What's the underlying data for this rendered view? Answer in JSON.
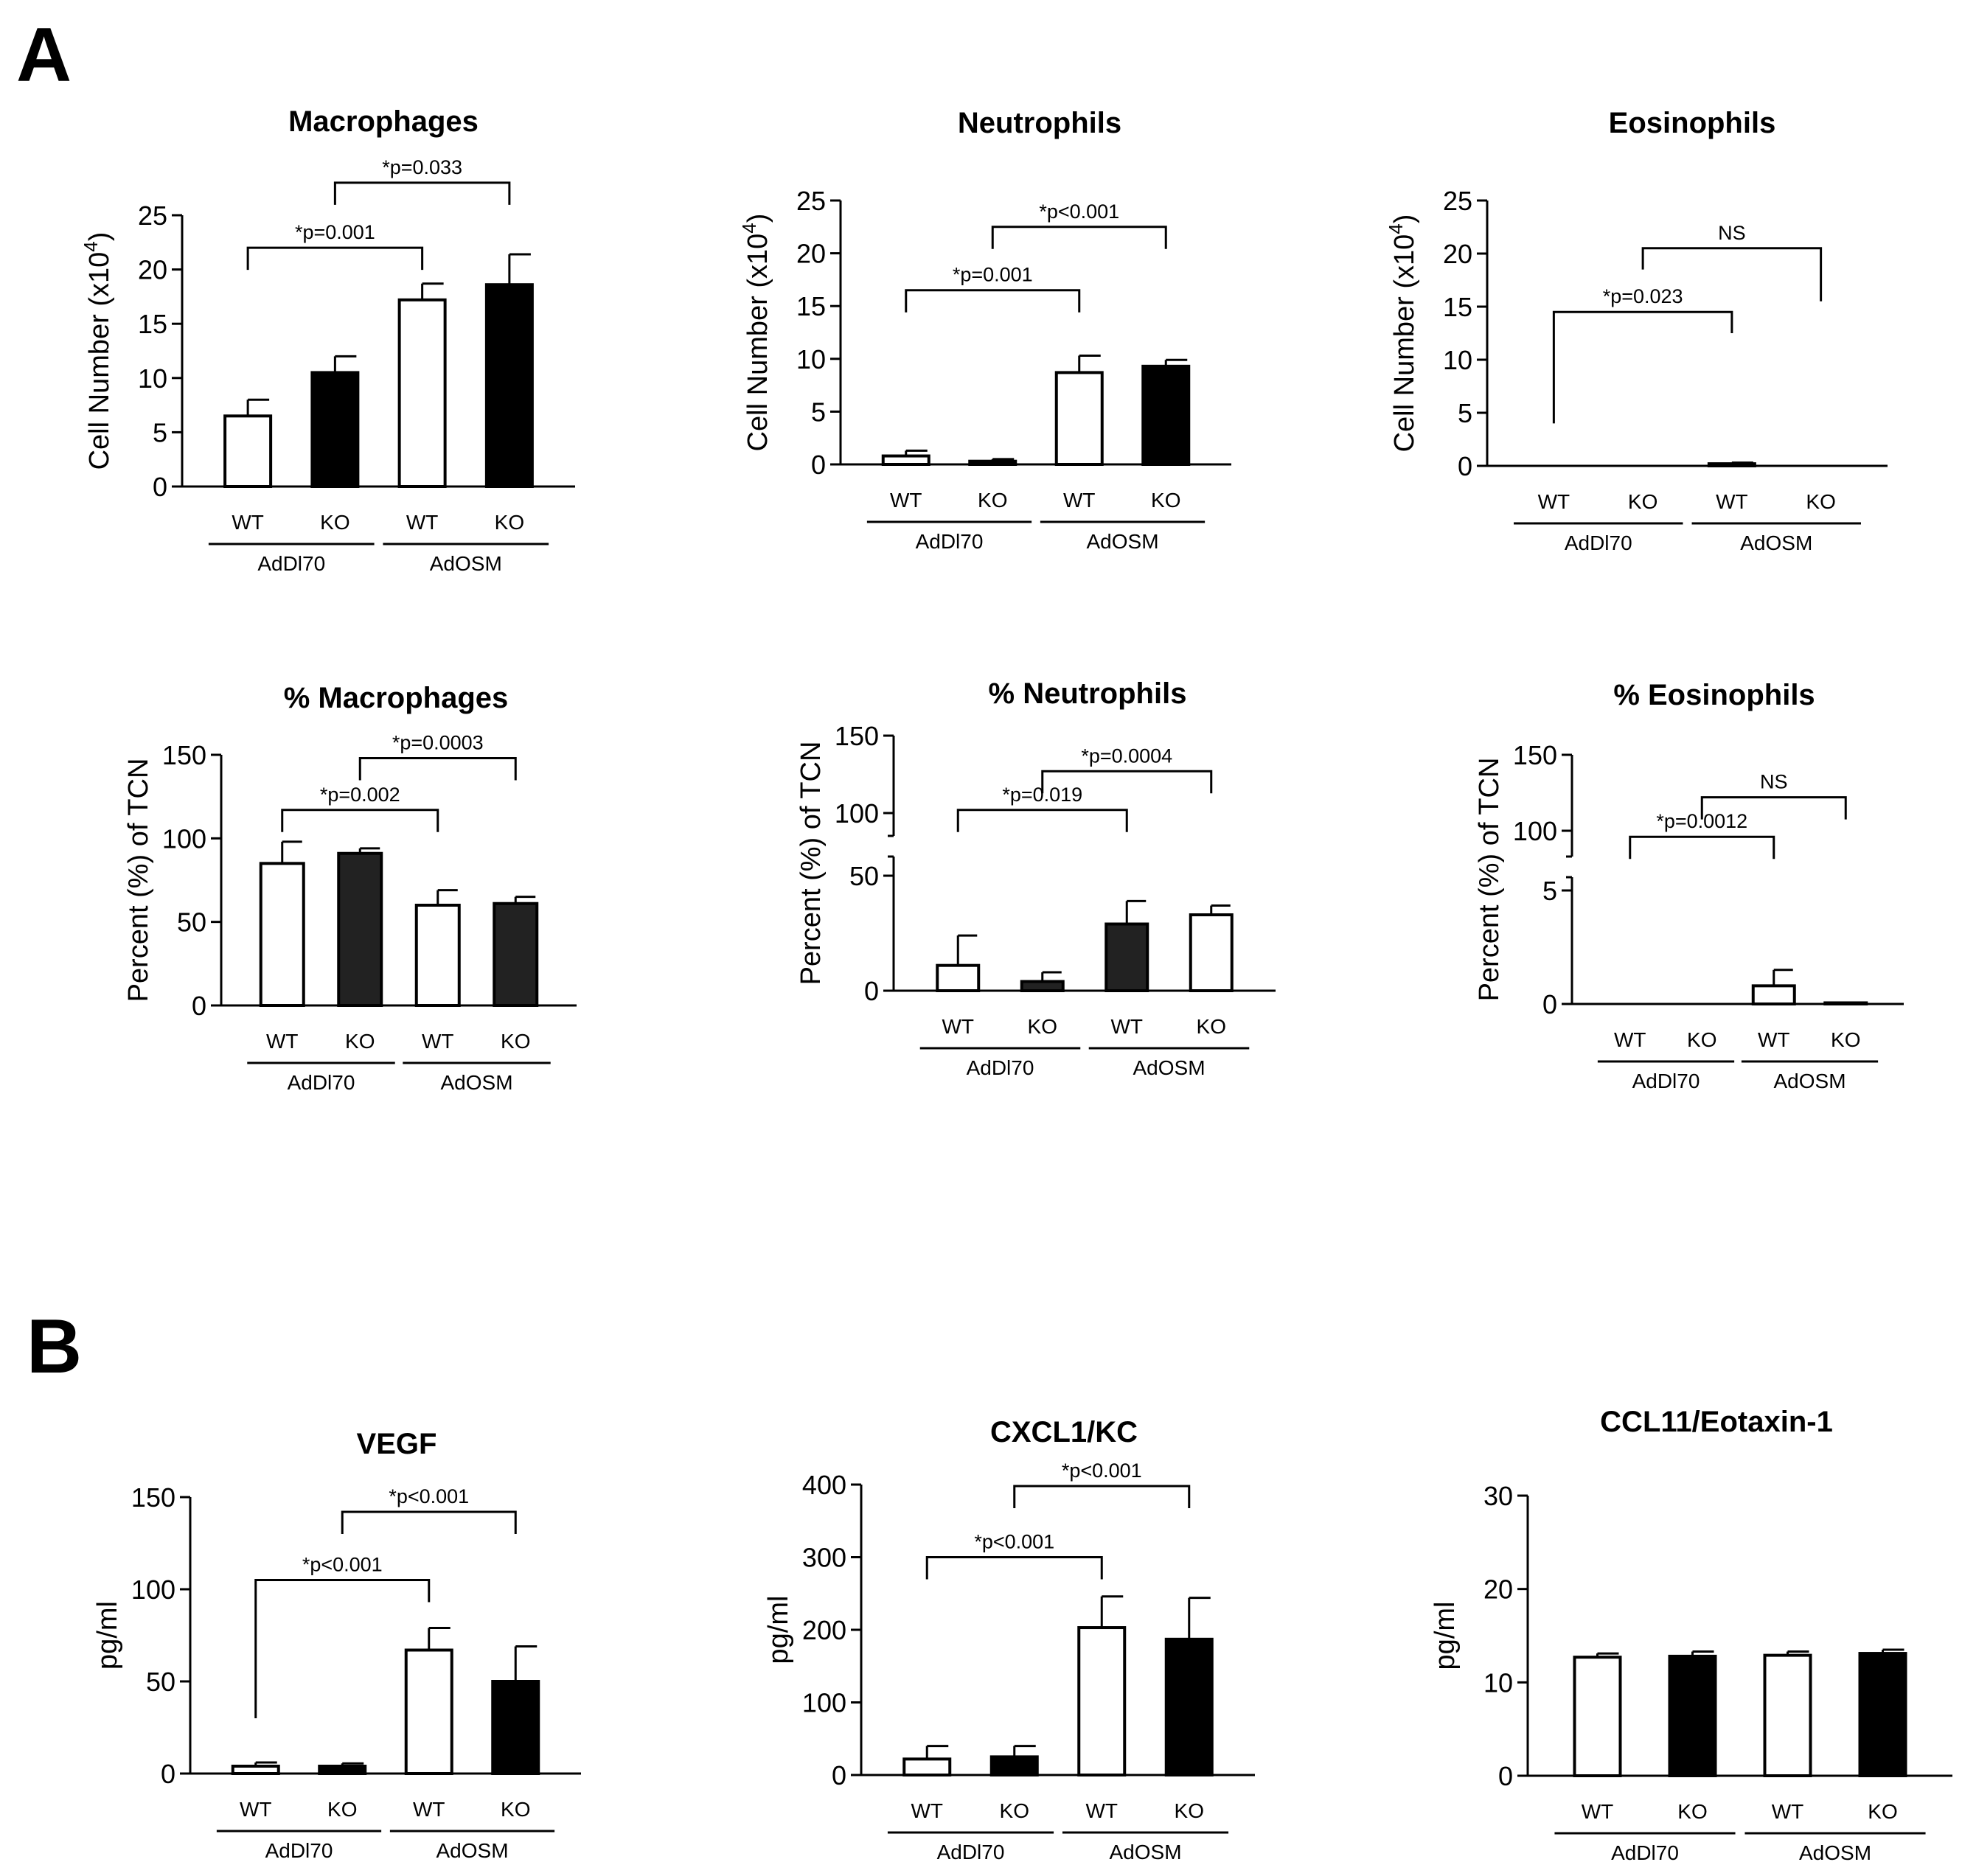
{
  "panels": {
    "A": "A",
    "B": "B"
  },
  "colors": {
    "black": "#000000",
    "dark": "#222222",
    "white": "#ffffff"
  },
  "chart_data": [
    {
      "id": "macrophages",
      "type": "bar",
      "title": "Macrophages",
      "ylabel": "Cell Number (x10",
      "ylabel_sup": "4",
      "ylabel_end": ")",
      "ylim": [
        0,
        25
      ],
      "yticks": [
        0,
        5,
        10,
        15,
        20,
        25
      ],
      "categories": [
        "WT",
        "KO",
        "WT",
        "KO"
      ],
      "groups": [
        {
          "label": "AdDl70",
          "from": 0,
          "to": 1
        },
        {
          "label": "AdOSM",
          "from": 2,
          "to": 3
        }
      ],
      "values": [
        6.5,
        10.5,
        17.2,
        18.6
      ],
      "errors": [
        1.5,
        1.5,
        1.5,
        2.8
      ],
      "fills": [
        "white",
        "black",
        "white",
        "black"
      ],
      "annotations": [
        {
          "from": 0,
          "to": 2,
          "y": 22.0,
          "label": "*p=0.001"
        },
        {
          "from": 1,
          "to": 3,
          "y": 28.0,
          "label": "*p=0.033"
        }
      ]
    },
    {
      "id": "neutrophils",
      "type": "bar",
      "title": "Neutrophils",
      "ylabel": "Cell Number (x10",
      "ylabel_sup": "4",
      "ylabel_end": ")",
      "ylim": [
        0,
        25
      ],
      "yticks": [
        0,
        5,
        10,
        15,
        20,
        25
      ],
      "categories": [
        "WT",
        "KO",
        "WT",
        "KO"
      ],
      "groups": [
        {
          "label": "AdDl70",
          "from": 0,
          "to": 1
        },
        {
          "label": "AdOSM",
          "from": 2,
          "to": 3
        }
      ],
      "values": [
        0.8,
        0.3,
        8.7,
        9.3
      ],
      "errors": [
        0.5,
        0.2,
        1.6,
        0.6
      ],
      "fills": [
        "white",
        "black",
        "white",
        "black"
      ],
      "annotations": [
        {
          "from": 0,
          "to": 2,
          "y": 16.5,
          "label": "*p=0.001"
        },
        {
          "from": 1,
          "to": 3,
          "y": 22.5,
          "label": "*p<0.001"
        }
      ]
    },
    {
      "id": "eosinophils",
      "type": "bar",
      "title": "Eosinophils",
      "ylabel": "Cell Number (x10",
      "ylabel_sup": "4",
      "ylabel_end": ")",
      "ylim": [
        0,
        25
      ],
      "yticks": [
        0,
        5,
        10,
        15,
        20,
        25
      ],
      "categories": [
        "WT",
        "KO",
        "WT",
        "KO"
      ],
      "groups": [
        {
          "label": "AdDl70",
          "from": 0,
          "to": 1
        },
        {
          "label": "AdOSM",
          "from": 2,
          "to": 3
        }
      ],
      "values": [
        0,
        0,
        0.2,
        0
      ],
      "errors": [
        0,
        0,
        0.1,
        0
      ],
      "fills": [
        "white",
        "black",
        "white",
        "black"
      ],
      "annotations": [
        {
          "from": 0,
          "to": 2,
          "y": 14.5,
          "left_end": 4.0,
          "right_end": 12.5,
          "label": "*p=0.023"
        },
        {
          "from": 1,
          "to": 3,
          "y": 20.5,
          "left_end": 18.5,
          "right_end": 15.5,
          "label": "NS"
        }
      ]
    },
    {
      "id": "pct_macrophages",
      "type": "bar",
      "title": "% Macrophages",
      "ylabel": "Percent (%) of TCN",
      "ylim": [
        0,
        150
      ],
      "yticks": [
        0,
        50,
        100,
        150
      ],
      "categories": [
        "WT",
        "KO",
        "WT",
        "KO"
      ],
      "groups": [
        {
          "label": "AdDl70",
          "from": 0,
          "to": 1
        },
        {
          "label": "AdOSM",
          "from": 2,
          "to": 3
        }
      ],
      "values": [
        85,
        91,
        60,
        61
      ],
      "errors": [
        13,
        3,
        9,
        4
      ],
      "fills": [
        "white",
        "dark",
        "white",
        "dark"
      ],
      "annotations": [
        {
          "from": 0,
          "to": 2,
          "y": 117,
          "label": "*p=0.002"
        },
        {
          "from": 1,
          "to": 3,
          "y": 148,
          "label": "*p=0.0003"
        }
      ]
    },
    {
      "id": "pct_neutrophils",
      "type": "bar",
      "title": "% Neutrophils",
      "ylabel": "Percent (%) of TCN",
      "ylim": [
        0,
        150
      ],
      "yticks": [
        0,
        50,
        100,
        150
      ],
      "axis_break": true,
      "break_ticks": [
        50,
        100,
        150
      ],
      "categories": [
        "WT",
        "KO",
        "WT",
        "KO"
      ],
      "groups": [
        {
          "label": "AdDl70",
          "from": 0,
          "to": 1
        },
        {
          "label": "AdOSM",
          "from": 2,
          "to": 3
        }
      ],
      "values": [
        11,
        4,
        29,
        33
      ],
      "errors": [
        13,
        4,
        10,
        4
      ],
      "fills": [
        "white",
        "dark",
        "dark",
        "white"
      ],
      "annotations": [
        {
          "from": 0,
          "to": 2,
          "y": 102,
          "label": "*p=0.019"
        },
        {
          "from": 1,
          "to": 3,
          "y": 127,
          "label": "*p=0.0004"
        }
      ]
    },
    {
      "id": "pct_eosinophils",
      "type": "bar",
      "title": "% Eosinophils",
      "ylabel": "Percent (%) of TCN",
      "ylim": [
        0,
        150
      ],
      "yticks": [
        0,
        5,
        100,
        150
      ],
      "axis_break": true,
      "break_ticks": [
        5,
        100,
        150
      ],
      "categories": [
        "WT",
        "KO",
        "WT",
        "KO"
      ],
      "groups": [
        {
          "label": "AdDl70",
          "from": 0,
          "to": 1
        },
        {
          "label": "AdOSM",
          "from": 2,
          "to": 3
        }
      ],
      "values": [
        0,
        0,
        0.8,
        0.05
      ],
      "errors": [
        0,
        0,
        0.7,
        0
      ],
      "fills": [
        "white",
        "dark",
        "white",
        "dark"
      ],
      "annotations": [
        {
          "from": 0,
          "to": 2,
          "y": 96,
          "label": "*p=0.0012"
        },
        {
          "from": 1,
          "to": 3,
          "y": 122,
          "label": "NS"
        }
      ]
    },
    {
      "id": "vegf",
      "type": "bar",
      "title": "VEGF",
      "ylabel": "pg/ml",
      "ylim": [
        0,
        150
      ],
      "yticks": [
        0,
        50,
        100,
        150
      ],
      "categories": [
        "WT",
        "KO",
        "WT",
        "KO"
      ],
      "groups": [
        {
          "label": "AdDl70",
          "from": 0,
          "to": 1
        },
        {
          "label": "AdOSM",
          "from": 2,
          "to": 3
        }
      ],
      "values": [
        4,
        4,
        67,
        50
      ],
      "errors": [
        2,
        1.5,
        12,
        19
      ],
      "fills": [
        "white",
        "black",
        "white",
        "black"
      ],
      "annotations": [
        {
          "from": 0,
          "to": 2,
          "y": 105,
          "left_end": 30,
          "label": "*p<0.001"
        },
        {
          "from": 1,
          "to": 3,
          "y": 142,
          "label": "*p<0.001"
        }
      ]
    },
    {
      "id": "cxcl1",
      "type": "bar",
      "title": "CXCL1/KC",
      "ylabel": "pg/ml",
      "ylim": [
        0,
        400
      ],
      "yticks": [
        0,
        100,
        200,
        300,
        400
      ],
      "categories": [
        "WT",
        "KO",
        "WT",
        "KO"
      ],
      "groups": [
        {
          "label": "AdDl70",
          "from": 0,
          "to": 1
        },
        {
          "label": "AdOSM",
          "from": 2,
          "to": 3
        }
      ],
      "values": [
        22,
        25,
        203,
        187
      ],
      "errors": [
        18,
        15,
        43,
        57
      ],
      "fills": [
        "white",
        "black",
        "white",
        "black"
      ],
      "annotations": [
        {
          "from": 0,
          "to": 2,
          "y": 300,
          "label": "*p<0.001"
        },
        {
          "from": 1,
          "to": 3,
          "y": 398,
          "label": "*p<0.001"
        }
      ]
    },
    {
      "id": "ccl11",
      "type": "bar",
      "title": "CCL11/Eotaxin-1",
      "ylabel": "pg/ml",
      "ylim": [
        0,
        30
      ],
      "yticks": [
        0,
        10,
        20,
        30
      ],
      "categories": [
        "WT",
        "KO",
        "WT",
        "KO"
      ],
      "groups": [
        {
          "label": "AdDl70",
          "from": 0,
          "to": 1
        },
        {
          "label": "AdOSM",
          "from": 2,
          "to": 3
        }
      ],
      "values": [
        12.7,
        12.8,
        12.9,
        13.1
      ],
      "errors": [
        0.4,
        0.5,
        0.4,
        0.4
      ],
      "fills": [
        "white",
        "black",
        "white",
        "black"
      ],
      "annotations": []
    }
  ]
}
